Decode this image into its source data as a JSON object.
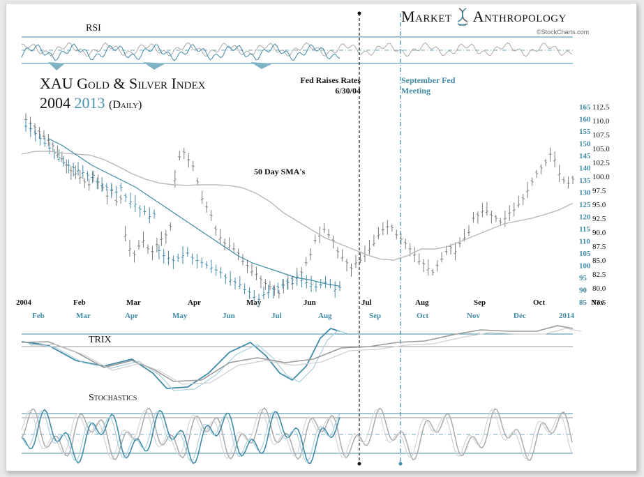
{
  "brand": {
    "name_left": "Market",
    "name_right": "Anthropology",
    "source": "©StockCharts.com"
  },
  "title": {
    "line1": "XAU Gold & Silver Index",
    "year1": "2004",
    "year2": "2013",
    "interval": "(Daily)"
  },
  "panels": {
    "rsi_label": "RSI",
    "trix_label": "TRIX",
    "stoch_label": "Stochastics"
  },
  "annotations": {
    "fed_raise_line1": "Fed Raises Rates",
    "fed_raise_line2": "6/30/04",
    "sept_fed_line1": "September Fed",
    "sept_fed_line2": "Meeting",
    "sma_label": "50 Day SMA's"
  },
  "colors": {
    "series_2004": "#7a7a7a",
    "series_2013": "#3f8aa6",
    "sma": "#b8b8b8",
    "accent_2013_text": "#4a93ac"
  },
  "chart_data": {
    "type": "line",
    "x_top_labels_2004": [
      "2004",
      "Feb",
      "Mar",
      "Apr",
      "May",
      "Jun",
      "Jul",
      "Aug",
      "Sep",
      "Oct",
      "Nov"
    ],
    "x_bottom_labels_2013": [
      "Feb",
      "Mar",
      "Apr",
      "May",
      "Jun",
      "Jul",
      "Aug",
      "Sep",
      "Oct",
      "Nov",
      "Dec",
      "2014"
    ],
    "y_right_ticks_2004": [
      112.5,
      110.0,
      107.5,
      105.0,
      102.5,
      100.0,
      97.5,
      95.0,
      92.5,
      90.0,
      87.5,
      85.0,
      82.5,
      80.0,
      77.5
    ],
    "y_left_ticks_2013": [
      165,
      160,
      155,
      150,
      145,
      140,
      135,
      130,
      125,
      120,
      115,
      110,
      105,
      100,
      95,
      90,
      85
    ],
    "ylim_2004": [
      77.5,
      112.5
    ],
    "ylim_2013": [
      85,
      165
    ],
    "series": [
      {
        "name": "2004",
        "axis": "right",
        "values": [
          110.2,
          109.5,
          108.8,
          108.0,
          107.2,
          106.5,
          105.5,
          104.0,
          103.2,
          102.0,
          101.0,
          100.5,
          99.8,
          99.0,
          98.5,
          100.2,
          99.0,
          98.0,
          96.5,
          97.5,
          95.5,
          96.0,
          89.5,
          87.0,
          86.0,
          87.5,
          88.5,
          87.0,
          86.5,
          87.8,
          88.8,
          89.5,
          91.0,
          99.5,
          103.5,
          104.3,
          103.0,
          101.8,
          99.0,
          96.0,
          94.5,
          93.0,
          90.5,
          89.0,
          88.0,
          87.5,
          87.0,
          86.2,
          84.8,
          84.0,
          83.0,
          82.5,
          81.5,
          80.8,
          80.2,
          79.8,
          79.0,
          80.5,
          81.0,
          80.8,
          82.0,
          82.8,
          84.5,
          86.0,
          88.5,
          89.5,
          90.5,
          89.5,
          88.5,
          86.5,
          85.5,
          84.5,
          83.5,
          84.5,
          85.0,
          86.0,
          87.0,
          88.0,
          89.5,
          90.5,
          91.0,
          90.8,
          89.5,
          88.8,
          88.0,
          87.0,
          86.0,
          84.8,
          84.3,
          83.5,
          82.8,
          84.0,
          85.2,
          86.5,
          87.2,
          86.5,
          88.0,
          89.0,
          90.0,
          92.5,
          93.0,
          93.8,
          93.8,
          93.0,
          92.5,
          91.8,
          92.5,
          93.5,
          94.0,
          95.0,
          96.0,
          97.5,
          99.0,
          100.5,
          101.5,
          102.5,
          104.0,
          103.0,
          100.5,
          99.2,
          98.8,
          99.5
        ]
      },
      {
        "name": "2013",
        "axis": "left",
        "values": [
          157,
          156,
          154,
          152,
          150,
          148,
          146,
          144,
          142,
          141,
          140,
          139,
          138,
          137,
          136,
          134,
          133,
          132,
          131,
          130,
          132,
          128,
          126,
          125,
          123,
          122,
          120,
          121,
          106,
          104,
          103,
          102,
          103,
          104,
          105,
          103,
          102,
          101,
          100,
          99,
          98,
          97,
          95,
          94,
          93,
          92,
          90,
          89,
          87,
          86,
          88,
          89,
          90,
          91,
          92,
          93,
          94,
          95,
          94,
          93,
          92,
          91,
          92,
          93,
          92,
          90,
          91
        ]
      },
      {
        "name": "sma_2004",
        "axis": "right",
        "values": [
          104.0,
          104.5,
          104.5,
          104.2,
          104.0,
          103.8,
          103.0,
          101.8,
          100.5,
          99.5,
          98.8,
          98.5,
          98.4,
          98.5,
          98.5,
          98.4,
          98.0,
          97.0,
          95.5,
          93.5,
          92.0,
          90.5,
          89.0,
          88.0,
          87.0,
          86.0,
          85.2,
          85.0,
          85.8,
          87.0,
          87.0,
          87.5,
          88.5,
          89.5,
          90.5,
          91.5,
          92.0,
          92.5,
          93.2,
          94.0,
          95.2
        ]
      }
    ]
  }
}
